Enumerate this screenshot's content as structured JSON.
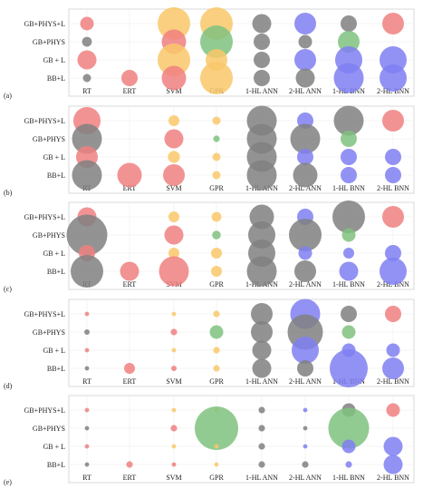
{
  "chart_data": {
    "type": "bubble-matrix",
    "rows": [
      "GB+PHYS+L",
      "GB+PHYS",
      "GB + L",
      "BB+L"
    ],
    "models": [
      "RT",
      "ERT",
      "SVM",
      "GPR",
      "1-HL ANN",
      "2-HL ANN",
      "1-HL BNN",
      "2-HL BNN"
    ],
    "colors": {
      "red": "#f08080",
      "orange": "#f9c86a",
      "grey": "#808080",
      "blue": "#7f7ff2",
      "green": "#7fc27f"
    },
    "model_colors": [
      "red",
      "red",
      "red",
      "orange",
      "grey",
      "blue",
      "grey",
      "blue"
    ],
    "panels": [
      {
        "tag": "(a)",
        "sizes": [
          [
            2.5,
            0,
            6,
            6,
            3.5,
            4,
            3,
            4
          ],
          [
            1.8,
            0,
            4.5,
            6,
            3,
            2.5,
            4,
            0
          ],
          [
            3.5,
            0,
            6,
            4,
            3,
            4,
            5,
            5
          ],
          [
            1.5,
            3,
            4.5,
            6,
            3,
            3.5,
            5.5,
            5
          ]
        ],
        "colors": [
          [
            "red",
            null,
            "orange",
            "orange",
            "grey",
            "blue",
            "grey",
            "red"
          ],
          [
            "grey",
            null,
            "red",
            "green",
            "grey",
            "grey",
            "green",
            null
          ],
          [
            "red",
            null,
            "orange",
            "orange",
            "grey",
            "blue",
            "blue",
            "blue"
          ],
          [
            "grey",
            "red",
            "red",
            "orange",
            "grey",
            "grey",
            "blue",
            "blue"
          ]
        ]
      },
      {
        "tag": "(b)",
        "sizes": [
          [
            5,
            0,
            2,
            1.5,
            5.5,
            3,
            5.5,
            4
          ],
          [
            5.5,
            0,
            3.5,
            1.2,
            5.5,
            5.5,
            3,
            0
          ],
          [
            4,
            0,
            2.2,
            1.5,
            5.5,
            3,
            3,
            3
          ],
          [
            5.5,
            4.5,
            4,
            1.5,
            5.5,
            4.5,
            3,
            3
          ]
        ],
        "colors": [
          [
            "red",
            null,
            "orange",
            "orange",
            "grey",
            "blue",
            "grey",
            "red"
          ],
          [
            "grey",
            null,
            "red",
            "green",
            "grey",
            "grey",
            "green",
            null
          ],
          [
            "red",
            null,
            "orange",
            "orange",
            "grey",
            "blue",
            "blue",
            "blue"
          ],
          [
            "grey",
            "red",
            "red",
            "orange",
            "grey",
            "grey",
            "blue",
            "blue"
          ]
        ]
      },
      {
        "tag": "(c)",
        "sizes": [
          [
            3.5,
            0,
            2,
            1.8,
            4.5,
            3,
            6,
            4
          ],
          [
            7.5,
            0,
            3.5,
            1.6,
            5,
            6,
            2.5,
            0
          ],
          [
            3,
            0,
            2,
            2,
            5,
            2.5,
            2,
            3
          ],
          [
            6,
            3.5,
            5.5,
            2,
            5.5,
            4,
            3.5,
            5
          ]
        ],
        "colors": [
          [
            "red",
            null,
            "orange",
            "orange",
            "grey",
            "blue",
            "grey",
            "red"
          ],
          [
            "grey",
            null,
            "red",
            "green",
            "grey",
            "grey",
            "green",
            null
          ],
          [
            "red",
            null,
            "orange",
            "orange",
            "grey",
            "blue",
            "blue",
            "blue"
          ],
          [
            "grey",
            "red",
            "red",
            "orange",
            "grey",
            "grey",
            "blue",
            "blue"
          ]
        ]
      },
      {
        "tag": "(d)",
        "sizes": [
          [
            0.8,
            0,
            0.8,
            1.2,
            4,
            5.5,
            3,
            3
          ],
          [
            1,
            0,
            1.2,
            2.5,
            4,
            6.5,
            2.5,
            0
          ],
          [
            0.8,
            0,
            0.8,
            1.2,
            3.5,
            5,
            2.5,
            2.5
          ],
          [
            0.8,
            2,
            1,
            1.2,
            3.5,
            3,
            7,
            4
          ]
        ],
        "colors": [
          [
            "red",
            null,
            "orange",
            "orange",
            "grey",
            "blue",
            "grey",
            "red"
          ],
          [
            "grey",
            null,
            "red",
            "green",
            "grey",
            "grey",
            "green",
            null
          ],
          [
            "red",
            null,
            "orange",
            "orange",
            "grey",
            "blue",
            "blue",
            "blue"
          ],
          [
            "grey",
            "red",
            "red",
            "orange",
            "grey",
            "grey",
            "blue",
            "blue"
          ]
        ]
      },
      {
        "tag": "(e)",
        "sizes": [
          [
            0.8,
            0,
            0.8,
            0.8,
            1.2,
            0.8,
            2.5,
            2.5
          ],
          [
            0.8,
            0,
            1.2,
            8,
            1.2,
            0.8,
            7.5,
            0
          ],
          [
            0.8,
            0,
            0.8,
            0.8,
            1.2,
            0.8,
            2.5,
            3.5
          ],
          [
            0.8,
            1.2,
            0.8,
            0.8,
            1.2,
            1.2,
            1.2,
            3.5
          ]
        ],
        "colors": [
          [
            "red",
            null,
            "orange",
            "orange",
            "grey",
            "blue",
            "grey",
            "red"
          ],
          [
            "grey",
            null,
            "red",
            "green",
            "grey",
            "grey",
            "green",
            null
          ],
          [
            "red",
            null,
            "orange",
            "orange",
            "grey",
            "blue",
            "blue",
            "blue"
          ],
          [
            "grey",
            "red",
            "red",
            "orange",
            "grey",
            "grey",
            "blue",
            "blue"
          ]
        ]
      }
    ]
  }
}
